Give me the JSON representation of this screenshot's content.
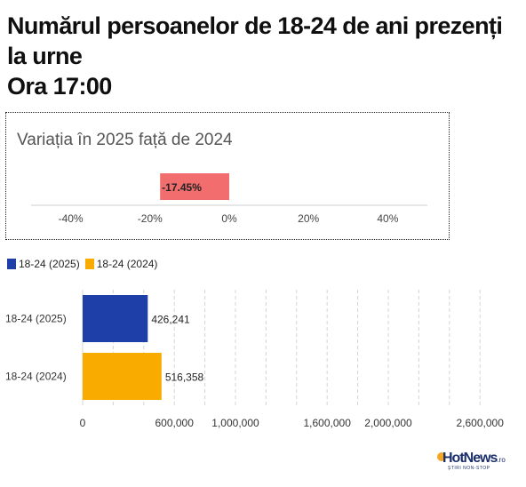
{
  "title_lines": [
    "Numărul persoanelor de 18-24 de ani prezenți",
    "la urne",
    "Ora 17:00"
  ],
  "colors": {
    "series_2025": "#1f3fa8",
    "series_2024": "#f9ab00",
    "variation_bar": "#f26d6d",
    "grid": "#d4d4d4"
  },
  "logo": {
    "name": "HotNews",
    "suffix": ".ro",
    "tagline": "ȘTIRI NON-STOP"
  },
  "chart_data": [
    {
      "type": "bar",
      "orientation": "horizontal",
      "title": "Variația în 2025 față de 2024",
      "values": [
        -17.45
      ],
      "value_labels": [
        "-17.45%"
      ],
      "xlim": [
        -0.5,
        0.5
      ],
      "x_ticks": [
        -0.4,
        -0.2,
        0,
        0.2,
        0.4
      ],
      "x_tick_labels": [
        "-40%",
        "-20%",
        "0%",
        "20%",
        "40%"
      ],
      "grid": false
    },
    {
      "type": "bar",
      "orientation": "horizontal",
      "categories": [
        "18-24 (2025)",
        "18-24 (2024)"
      ],
      "series": [
        {
          "name": "18-24 (2025)",
          "color": "#1f3fa8",
          "values": [
            426241,
            null
          ]
        },
        {
          "name": "18-24 (2024)",
          "color": "#f9ab00",
          "values": [
            null,
            516358
          ]
        }
      ],
      "value_labels": [
        "426,241",
        "516,358"
      ],
      "xlim": [
        0,
        2750000
      ],
      "x_ticks": [
        0,
        600000,
        1000000,
        1600000,
        2000000,
        2600000
      ],
      "x_tick_labels": [
        "0",
        "600,000",
        "1,000,000",
        "1,600,000",
        "2,000,000",
        "2,600,000"
      ],
      "grid_lines": [
        0,
        200000,
        400000,
        600000,
        800000,
        1000000,
        1200000,
        1400000,
        1600000,
        1800000,
        2000000,
        2200000,
        2400000,
        2600000
      ],
      "grid": true,
      "legend": [
        "18-24 (2025)",
        "18-24 (2024)"
      ],
      "legend_position": "top-left"
    }
  ]
}
